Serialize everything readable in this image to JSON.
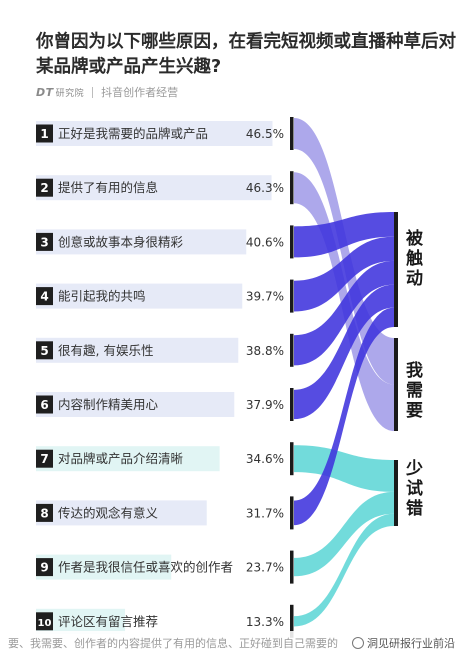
{
  "page": {
    "title": "你曾因为以下哪些原因，在看完短视频或直播种草后对某品牌或产品产生兴趣?",
    "brand": "DT",
    "brand_sub": "研究院",
    "publisher": "抖音创作者经营",
    "footer_text": "要、我需要、创作者的内容提供了有用的信息、正好碰到自己需要的商品、",
    "watermark": "洞见研报行业前沿"
  },
  "colors": {
    "label_bg": "#e6eaf7",
    "label_bg_alt": "#e1f5f4",
    "num_bg": "#1f1f1f",
    "bracket": "#1a1a1a",
    "flow_triggered": "#3f33dd",
    "flow_need": "#9f99e8",
    "flow_try": "#5ed6d6"
  },
  "chart_data": {
    "type": "sankey",
    "title": "你曾因为以下哪些原因，在看完短视频或直播种草后对某品牌或产品产生兴趣?",
    "unit": "%",
    "reasons": [
      {
        "rank": "1",
        "label": "正好是我需要的品牌或产品",
        "value": 46.5,
        "value_label": "46.5%",
        "target": "我需要"
      },
      {
        "rank": "2",
        "label": "提供了有用的信息",
        "value": 46.3,
        "value_label": "46.3%",
        "target": "我需要"
      },
      {
        "rank": "3",
        "label": "创意或故事本身很精彩",
        "value": 40.6,
        "value_label": "40.6%",
        "target": "被触动"
      },
      {
        "rank": "4",
        "label": "能引起我的共鸣",
        "value": 39.7,
        "value_label": "39.7%",
        "target": "被触动"
      },
      {
        "rank": "5",
        "label": "很有趣, 有娱乐性",
        "value": 38.8,
        "value_label": "38.8%",
        "target": "被触动"
      },
      {
        "rank": "6",
        "label": "内容制作精美用心",
        "value": 37.9,
        "value_label": "37.9%",
        "target": "被触动"
      },
      {
        "rank": "7",
        "label": "对品牌或产品介绍清晰",
        "value": 34.6,
        "value_label": "34.6%",
        "target": "少试错"
      },
      {
        "rank": "8",
        "label": "传达的观念有意义",
        "value": 31.7,
        "value_label": "31.7%",
        "target": "被触动"
      },
      {
        "rank": "9",
        "label": "作者是我很信任或喜欢的创作者",
        "value": 23.7,
        "value_label": "23.7%",
        "target": "少试错"
      },
      {
        "rank": "10",
        "label": "评论区有留言推荐",
        "value": 13.3,
        "value_label": "13.3%",
        "target": "少试错"
      }
    ],
    "categories": [
      {
        "key": "triggered",
        "label": "被触动"
      },
      {
        "key": "need",
        "label": "我需要"
      },
      {
        "key": "try",
        "label": "少试错"
      }
    ]
  }
}
